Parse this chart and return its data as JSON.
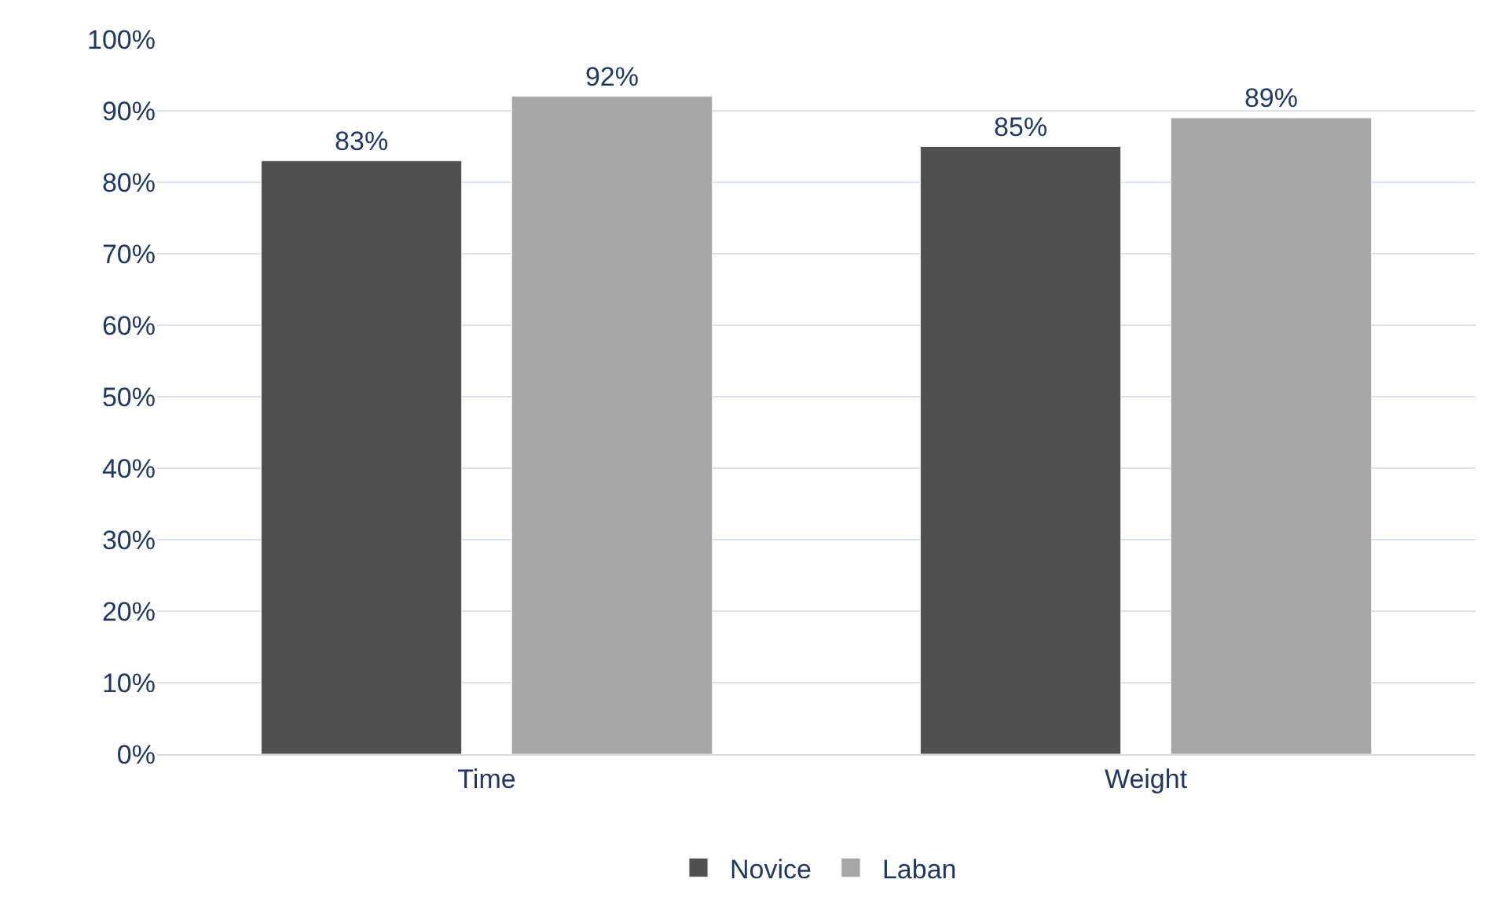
{
  "chart_data": {
    "type": "bar",
    "categories": [
      "Time",
      "Weight"
    ],
    "series": [
      {
        "name": "Novice",
        "color": "#505050",
        "values": [
          83,
          85
        ],
        "value_labels": [
          "83%",
          "85%"
        ]
      },
      {
        "name": "Laban",
        "color": "#a6a6a6",
        "values": [
          92,
          89
        ],
        "value_labels": [
          "92%",
          "89%"
        ]
      }
    ],
    "ylim": [
      0,
      100
    ],
    "yticks": [
      {
        "value": 0,
        "label": "0%"
      },
      {
        "value": 10,
        "label": "10%"
      },
      {
        "value": 20,
        "label": "20%"
      },
      {
        "value": 30,
        "label": "30%"
      },
      {
        "value": 40,
        "label": "40%"
      },
      {
        "value": 50,
        "label": "50%"
      },
      {
        "value": 60,
        "label": "60%"
      },
      {
        "value": 70,
        "label": "70%"
      },
      {
        "value": 80,
        "label": "80%"
      },
      {
        "value": 90,
        "label": "90%"
      },
      {
        "value": 100,
        "label": "100%"
      }
    ],
    "grid": "y",
    "legend": "bottom"
  }
}
